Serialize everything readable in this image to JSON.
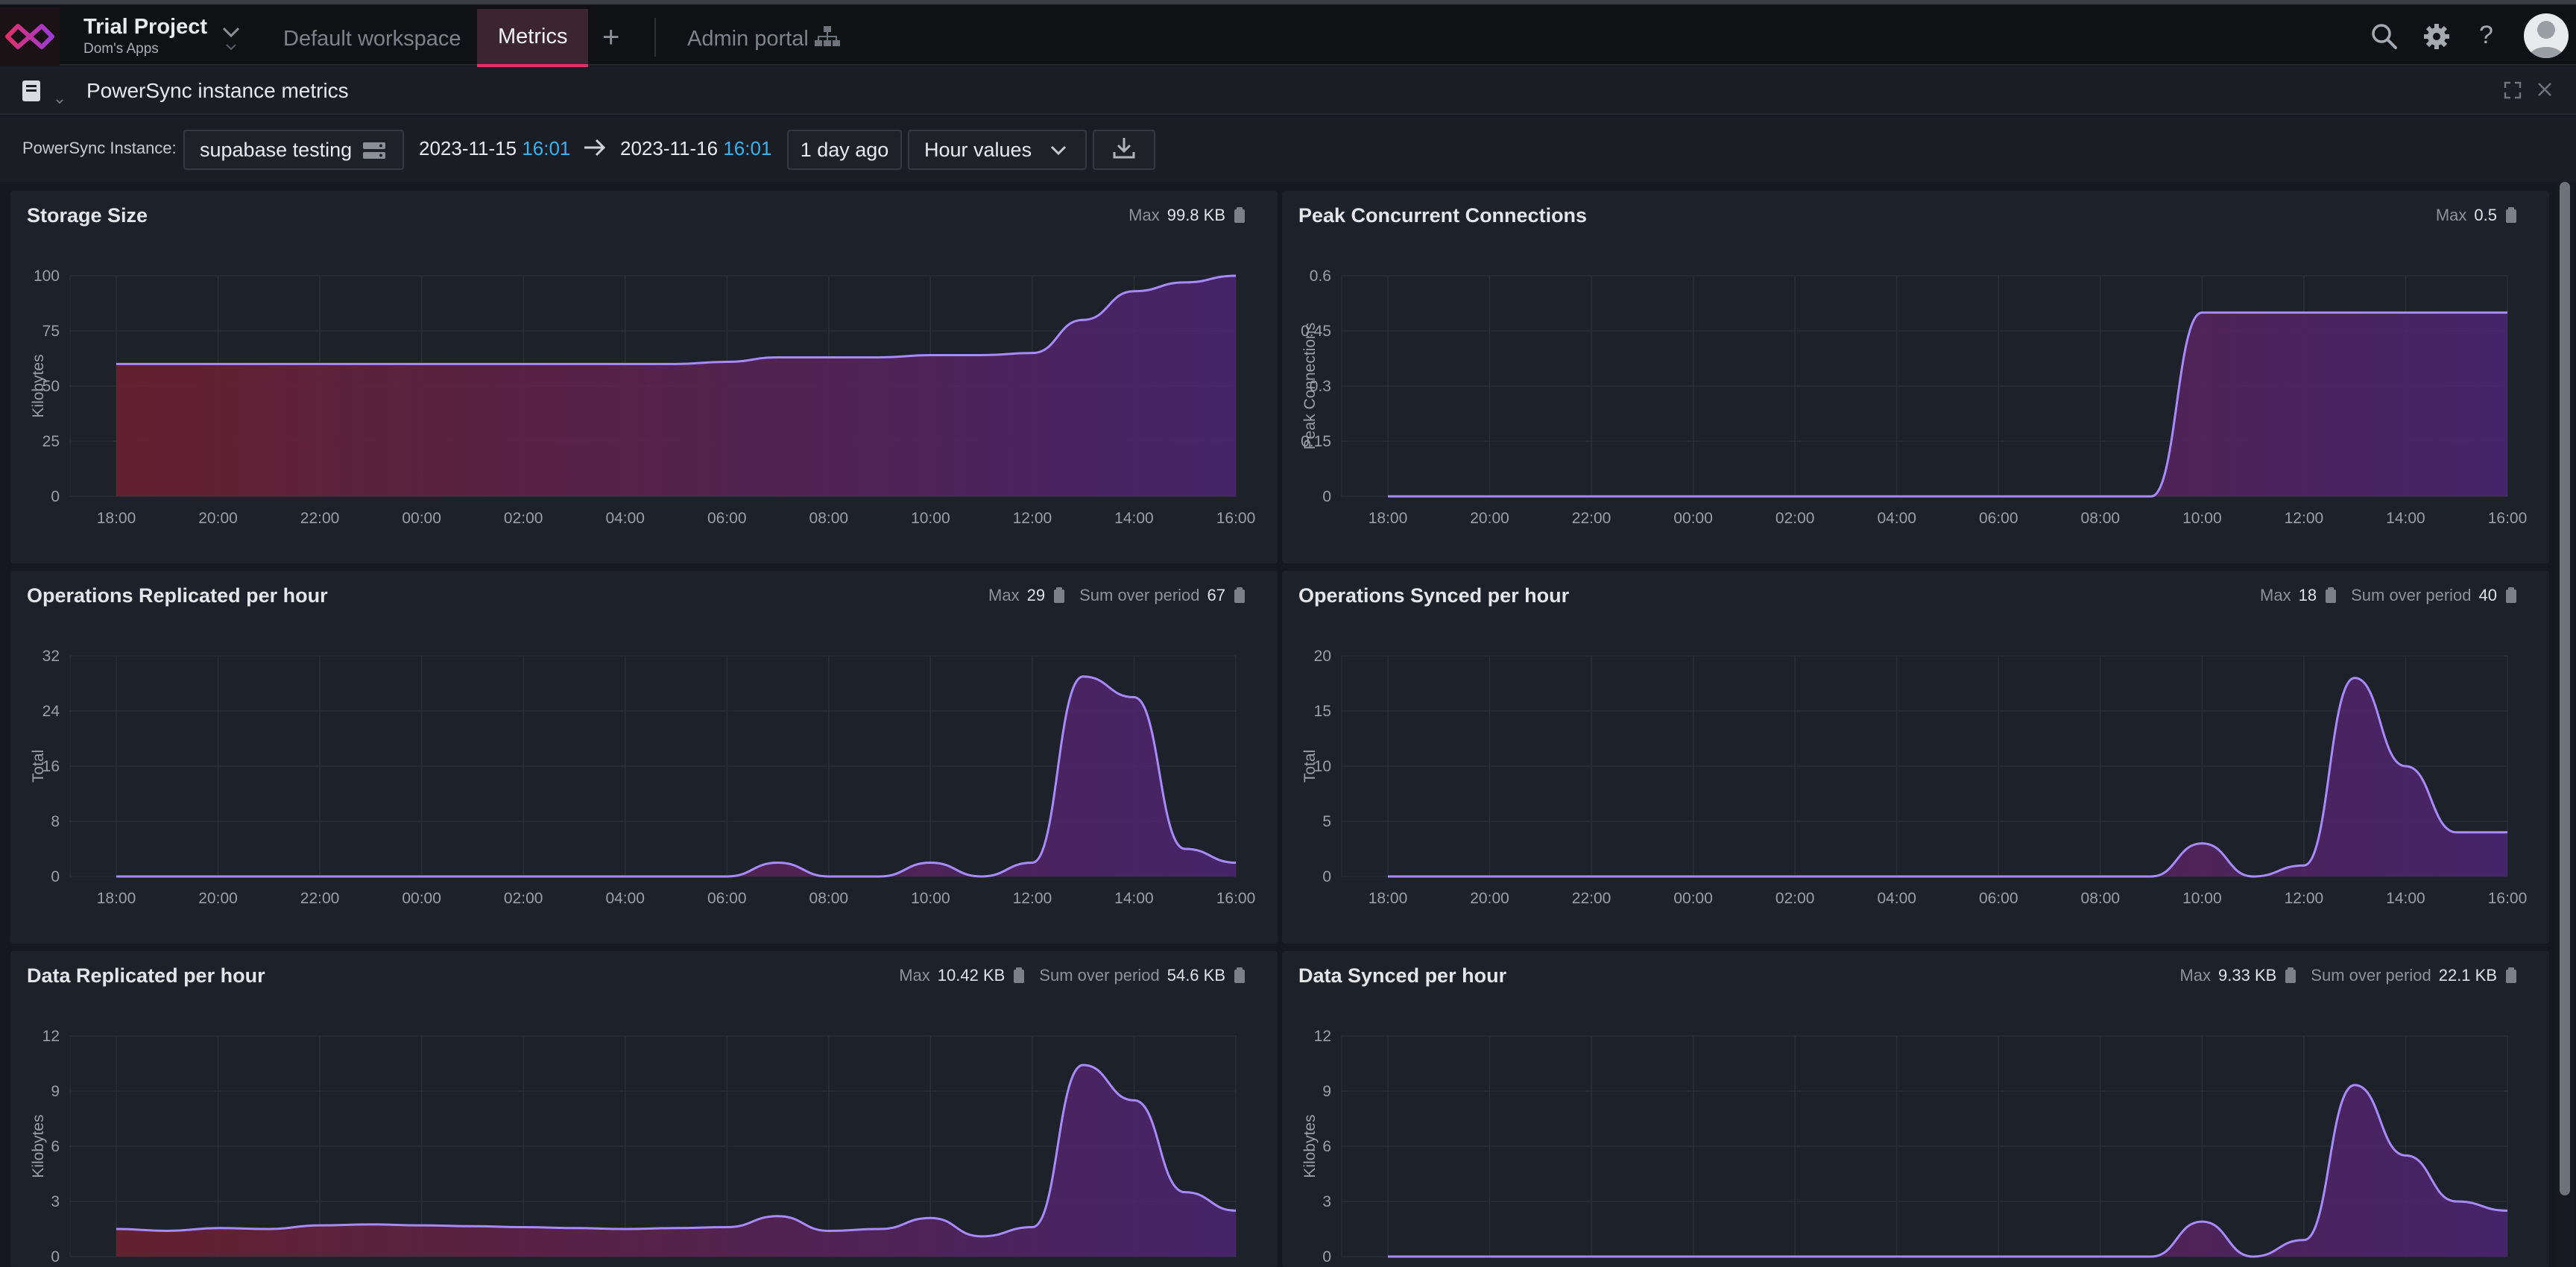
{
  "topbar": {
    "project_name": "Trial Project",
    "project_sub": "Dom's Apps",
    "tabs": [
      {
        "label": "Default workspace"
      },
      {
        "label": "Metrics"
      },
      {
        "label": "Admin portal"
      }
    ],
    "icons": [
      "logo-icon",
      "chevron-down-icon",
      "plus-icon",
      "sitemap-icon",
      "search-icon",
      "gear-icon",
      "help-icon",
      "avatar"
    ]
  },
  "subheader": {
    "title": "PowerSync instance metrics"
  },
  "toolbar": {
    "instance_label": "PowerSync Instance:",
    "instance_value": "supabase testing",
    "start_date": "2023-11-15",
    "start_time": "16:01",
    "end_date": "2023-11-16",
    "end_time": "16:01",
    "range_label": "1 day ago",
    "granularity": "Hour values"
  },
  "colors": {
    "accent": "#e0306a",
    "line": "#a78bfa",
    "time": "#38b2ee",
    "fill_start": "#6b2130",
    "fill_end": "#4a2570"
  },
  "panels": [
    {
      "title": "Storage Size",
      "stats": [
        {
          "label": "Max",
          "value": "99.8 KB"
        }
      ]
    },
    {
      "title": "Peak Concurrent Connections",
      "stats": [
        {
          "label": "Max",
          "value": "0.5"
        }
      ]
    },
    {
      "title": "Operations Replicated per hour",
      "stats": [
        {
          "label": "Max",
          "value": "29"
        },
        {
          "label": "Sum over period",
          "value": "67"
        }
      ]
    },
    {
      "title": "Operations Synced per hour",
      "stats": [
        {
          "label": "Max",
          "value": "18"
        },
        {
          "label": "Sum over period",
          "value": "40"
        }
      ]
    },
    {
      "title": "Data Replicated per hour",
      "stats": [
        {
          "label": "Max",
          "value": "10.42 KB"
        },
        {
          "label": "Sum over period",
          "value": "54.6 KB"
        }
      ]
    },
    {
      "title": "Data Synced per hour",
      "stats": [
        {
          "label": "Max",
          "value": "9.33 KB"
        },
        {
          "label": "Sum over period",
          "value": "22.1 KB"
        }
      ]
    }
  ],
  "chart_data": [
    {
      "type": "area",
      "title": "Storage Size",
      "ylabel": "Kilobytes",
      "x": [
        "18:00",
        "19:00",
        "20:00",
        "21:00",
        "22:00",
        "23:00",
        "00:00",
        "01:00",
        "02:00",
        "03:00",
        "04:00",
        "05:00",
        "06:00",
        "07:00",
        "08:00",
        "09:00",
        "10:00",
        "11:00",
        "12:00",
        "13:00",
        "14:00",
        "15:00",
        "16:00"
      ],
      "xticks": [
        "18:00",
        "20:00",
        "22:00",
        "00:00",
        "02:00",
        "04:00",
        "06:00",
        "08:00",
        "10:00",
        "12:00",
        "14:00",
        "16:00"
      ],
      "yticks": [
        "0",
        "25",
        "50",
        "75",
        "100"
      ],
      "ylim": [
        0,
        100
      ],
      "values": [
        60,
        60,
        60,
        60,
        60,
        60,
        60,
        60,
        60,
        60,
        60,
        60,
        61,
        63,
        63,
        63,
        64,
        64,
        65,
        80,
        93,
        97,
        100
      ]
    },
    {
      "type": "area",
      "title": "Peak Concurrent Connections",
      "ylabel": "Peak Connections",
      "x": [
        "18:00",
        "19:00",
        "20:00",
        "21:00",
        "22:00",
        "23:00",
        "00:00",
        "01:00",
        "02:00",
        "03:00",
        "04:00",
        "05:00",
        "06:00",
        "07:00",
        "08:00",
        "09:00",
        "10:00",
        "11:00",
        "12:00",
        "13:00",
        "14:00",
        "15:00",
        "16:00"
      ],
      "xticks": [
        "18:00",
        "20:00",
        "22:00",
        "00:00",
        "02:00",
        "04:00",
        "06:00",
        "08:00",
        "10:00",
        "12:00",
        "14:00",
        "16:00"
      ],
      "yticks": [
        "0",
        "0.15",
        "0.3",
        "0.45",
        "0.6"
      ],
      "ylim": [
        0,
        0.6
      ],
      "values": [
        0,
        0,
        0,
        0,
        0,
        0,
        0,
        0,
        0,
        0,
        0,
        0,
        0,
        0,
        0,
        0,
        0.5,
        0.5,
        0.5,
        0.5,
        0.5,
        0.5,
        0.5
      ]
    },
    {
      "type": "area",
      "title": "Operations Replicated per hour",
      "ylabel": "Total",
      "x": [
        "18:00",
        "19:00",
        "20:00",
        "21:00",
        "22:00",
        "23:00",
        "00:00",
        "01:00",
        "02:00",
        "03:00",
        "04:00",
        "05:00",
        "06:00",
        "07:00",
        "08:00",
        "09:00",
        "10:00",
        "11:00",
        "12:00",
        "13:00",
        "14:00",
        "15:00",
        "16:00"
      ],
      "xticks": [
        "18:00",
        "20:00",
        "22:00",
        "00:00",
        "02:00",
        "04:00",
        "06:00",
        "08:00",
        "10:00",
        "12:00",
        "14:00",
        "16:00"
      ],
      "yticks": [
        "0",
        "8",
        "16",
        "24",
        "32"
      ],
      "ylim": [
        0,
        32
      ],
      "values": [
        0,
        0,
        0,
        0,
        0,
        0,
        0,
        0,
        0,
        0,
        0,
        0,
        0,
        2,
        0,
        0,
        2,
        0,
        2,
        29,
        26,
        4,
        2
      ]
    },
    {
      "type": "area",
      "title": "Operations Synced per hour",
      "ylabel": "Total",
      "x": [
        "18:00",
        "19:00",
        "20:00",
        "21:00",
        "22:00",
        "23:00",
        "00:00",
        "01:00",
        "02:00",
        "03:00",
        "04:00",
        "05:00",
        "06:00",
        "07:00",
        "08:00",
        "09:00",
        "10:00",
        "11:00",
        "12:00",
        "13:00",
        "14:00",
        "15:00",
        "16:00"
      ],
      "xticks": [
        "18:00",
        "20:00",
        "22:00",
        "00:00",
        "02:00",
        "04:00",
        "06:00",
        "08:00",
        "10:00",
        "12:00",
        "14:00",
        "16:00"
      ],
      "yticks": [
        "0",
        "5",
        "10",
        "15",
        "20"
      ],
      "ylim": [
        0,
        20
      ],
      "values": [
        0,
        0,
        0,
        0,
        0,
        0,
        0,
        0,
        0,
        0,
        0,
        0,
        0,
        0,
        0,
        0,
        3,
        0,
        1,
        18,
        10,
        4,
        4
      ]
    },
    {
      "type": "area",
      "title": "Data Replicated per hour",
      "ylabel": "Kilobytes",
      "x": [
        "18:00",
        "19:00",
        "20:00",
        "21:00",
        "22:00",
        "23:00",
        "00:00",
        "01:00",
        "02:00",
        "03:00",
        "04:00",
        "05:00",
        "06:00",
        "07:00",
        "08:00",
        "09:00",
        "10:00",
        "11:00",
        "12:00",
        "13:00",
        "14:00",
        "15:00",
        "16:00"
      ],
      "xticks": [
        "18:00",
        "20:00",
        "22:00",
        "00:00",
        "02:00",
        "04:00",
        "06:00",
        "08:00",
        "10:00",
        "12:00",
        "14:00",
        "16:00"
      ],
      "yticks": [
        "0",
        "3",
        "6",
        "9",
        "12"
      ],
      "ylim": [
        0,
        12
      ],
      "values": [
        1.5,
        1.4,
        1.55,
        1.5,
        1.7,
        1.75,
        1.7,
        1.65,
        1.6,
        1.55,
        1.5,
        1.55,
        1.6,
        2.2,
        1.4,
        1.5,
        2.1,
        1.1,
        1.6,
        10.42,
        8.5,
        3.5,
        2.5
      ]
    },
    {
      "type": "area",
      "title": "Data Synced per hour",
      "ylabel": "Kilobytes",
      "x": [
        "18:00",
        "19:00",
        "20:00",
        "21:00",
        "22:00",
        "23:00",
        "00:00",
        "01:00",
        "02:00",
        "03:00",
        "04:00",
        "05:00",
        "06:00",
        "07:00",
        "08:00",
        "09:00",
        "10:00",
        "11:00",
        "12:00",
        "13:00",
        "14:00",
        "15:00",
        "16:00"
      ],
      "xticks": [
        "18:00",
        "20:00",
        "22:00",
        "00:00",
        "02:00",
        "04:00",
        "06:00",
        "08:00",
        "10:00",
        "12:00",
        "14:00",
        "16:00"
      ],
      "yticks": [
        "0",
        "3",
        "6",
        "9",
        "12"
      ],
      "ylim": [
        0,
        12
      ],
      "values": [
        0,
        0,
        0,
        0,
        0,
        0,
        0,
        0,
        0,
        0,
        0,
        0,
        0,
        0,
        0,
        0,
        1.9,
        0,
        0.9,
        9.33,
        5.5,
        3,
        2.5
      ]
    }
  ]
}
